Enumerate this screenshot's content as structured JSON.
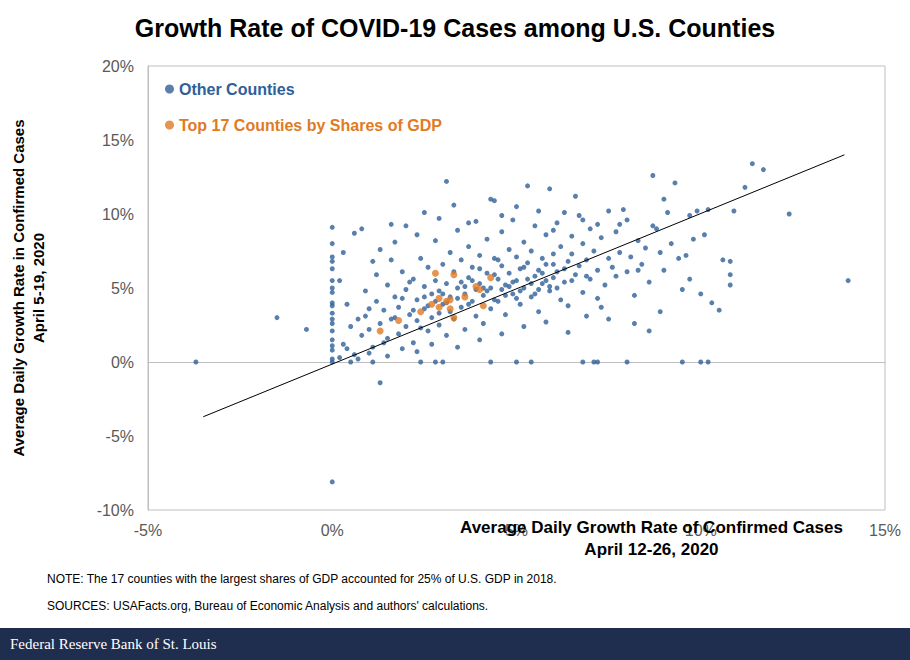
{
  "chart_data": {
    "type": "scatter",
    "title": "Growth Rate of COVID-19 Cases among U.S. Counties",
    "x_label": "Average Daily Growth Rate of Confirmed Cases\nApril 12-26, 2020",
    "y_label": "Average Daily Growth Rate in Confirmed Cases\nApril 5-19, 2020",
    "xlim": [
      -5,
      15
    ],
    "xticks": [
      {
        "value": -5,
        "label": "-5%"
      },
      {
        "value": 0,
        "label": "0%"
      },
      {
        "value": 5,
        "label": "5%"
      },
      {
        "value": 10,
        "label": "10%"
      },
      {
        "value": 15,
        "label": "15%"
      }
    ],
    "ylim": [
      -10,
      20
    ],
    "yticks": [
      {
        "value": -10,
        "label": "-10%"
      },
      {
        "value": -5,
        "label": "-5%"
      },
      {
        "value": 0,
        "label": "0%"
      },
      {
        "value": 5,
        "label": "5%"
      },
      {
        "value": 10,
        "label": "10%"
      },
      {
        "value": 15,
        "label": "15%"
      },
      {
        "value": 20,
        "label": "20%"
      }
    ],
    "grid": false,
    "legend": "upper left",
    "annotations": [
      "NOTE: The 17 counties with the largest shares of GDP accounted for 25% of U.S. GDP in 2018.",
      "SOURCES: USAFacts.org, Bureau of Economic Analysis and authors' calculations."
    ],
    "footer": "Federal Reserve Bank of St. Louis",
    "series": [
      {
        "name": "Other Counties",
        "type": "scatter",
        "marker": "circle",
        "color": "#2f6097",
        "x": [
          0,
          0,
          0,
          0,
          0,
          0,
          0,
          0,
          0,
          0,
          0,
          0,
          0,
          0,
          0,
          0,
          0,
          0,
          0,
          0,
          0.5,
          1.1,
          2.4,
          2.8,
          3.0,
          4.3,
          5.0,
          5.4,
          6.8,
          7.1,
          7.2,
          8.0,
          9.5,
          10.0,
          10.2,
          -3.7,
          -1.5,
          -0.7,
          1.3,
          14.0,
          12.4,
          11.4,
          11.7,
          3.1,
          8.7,
          10.3,
          10.5,
          9.3,
          11.2,
          10.9,
          10.2,
          10.6,
          10.8,
          10.8,
          10.8,
          9.9,
          9.7,
          8.8,
          9.0,
          10.1,
          9.6,
          8.3,
          8.6,
          7.9,
          7.2,
          7.5,
          6.8,
          6.5,
          7.8,
          9.1,
          0.3,
          0.5,
          0.6,
          0.8,
          0.9,
          1.0,
          1.1,
          1.2,
          1.3,
          1.4,
          1.5,
          1.5,
          1.6,
          1.7,
          1.8,
          1.8,
          1.9,
          2.0,
          2.0,
          2.1,
          2.2,
          2.2,
          2.3,
          2.3,
          2.4,
          2.5,
          2.5,
          2.6,
          2.6,
          2.7,
          2.7,
          2.8,
          2.8,
          2.9,
          2.9,
          3.0,
          3.0,
          3.1,
          3.1,
          3.2,
          3.2,
          3.3,
          3.3,
          3.4,
          3.4,
          3.5,
          3.5,
          3.6,
          3.6,
          3.7,
          3.7,
          3.8,
          3.8,
          3.9,
          3.9,
          4.0,
          4.0,
          4.1,
          4.1,
          4.2,
          4.2,
          4.3,
          4.3,
          4.4,
          4.4,
          4.5,
          4.5,
          4.6,
          4.6,
          4.7,
          4.7,
          4.8,
          4.8,
          4.9,
          4.9,
          5.0,
          5.0,
          5.1,
          5.1,
          5.2,
          5.2,
          5.3,
          5.3,
          5.4,
          5.4,
          5.5,
          5.5,
          5.6,
          5.6,
          5.7,
          5.7,
          5.8,
          5.8,
          5.9,
          5.9,
          6.0,
          6.0,
          6.1,
          6.1,
          6.2,
          6.2,
          6.3,
          6.3,
          6.4,
          6.4,
          6.5,
          6.6,
          6.6,
          6.7,
          6.8,
          6.8,
          6.9,
          7.0,
          7.0,
          7.1,
          7.2,
          7.2,
          7.3,
          7.4,
          7.5,
          7.5,
          7.6,
          7.7,
          7.7,
          7.8,
          8.0,
          8.0,
          8.1,
          8.2,
          8.3,
          8.4,
          8.5,
          8.6,
          8.7,
          8.9,
          9.0,
          9.2,
          9.4,
          9.5,
          9.8,
          0.4,
          0.7,
          0.9,
          1.2,
          1.4,
          1.6,
          1.9,
          2.1,
          2.4,
          2.6,
          2.8,
          3.0,
          3.2,
          3.4,
          3.5,
          3.7,
          3.9,
          4.0,
          4.2,
          4.4,
          4.5,
          4.7,
          4.9,
          5.1,
          5.3,
          5.5,
          5.7,
          5.9,
          6.1,
          6.3,
          1.1,
          1.3,
          1.7,
          2.0,
          2.3,
          0.6,
          0.2,
          0.3,
          0.8,
          1.6,
          2.5,
          2.9,
          3.3,
          3.7,
          4.3,
          4.6,
          5.0,
          5.6,
          6.0,
          6.7,
          0.2,
          0.4,
          0.7,
          1.0,
          1.5,
          1.9,
          2.3,
          2.7,
          3.4,
          4.0,
          4.6,
          5.2,
          5.8,
          6.4,
          6.9,
          7.3,
          8.2,
          8.9,
          9.7,
          10.0,
          1.0,
          1.7,
          2.2,
          2.5,
          2.9,
          3.1,
          3.6,
          3.8,
          4.1,
          4.4,
          4.6,
          4.8,
          5.0,
          5.2,
          5.4,
          5.6,
          5.8,
          6.0,
          6.5,
          6.9
        ],
        "values": [
          0.2,
          0.8,
          1.5,
          2.1,
          2.6,
          3.3,
          4.0,
          4.7,
          5.5,
          6.3,
          7.1,
          8.0,
          9.1,
          0,
          -8.1,
          1.1,
          3.8,
          5.0,
          6.8,
          2.9,
          0,
          0,
          0,
          0,
          0,
          0,
          0,
          0,
          0,
          0,
          0,
          0,
          0,
          0,
          0,
          0,
          3.0,
          2.2,
          -1.4,
          5.5,
          10.0,
          13.4,
          13.0,
          12.2,
          12.6,
          4.0,
          3.5,
          12.1,
          11.8,
          10.2,
          10.3,
          6.9,
          6.8,
          5.9,
          5.2,
          10.2,
          9.9,
          9.0,
          11.0,
          8.6,
          7.2,
          6.2,
          2.1,
          10.3,
          9.3,
          10.2,
          9.6,
          8.5,
          9.3,
          10.1,
          1.2,
          2.4,
          0.5,
          1.8,
          3.1,
          2.2,
          1.0,
          4.1,
          2.6,
          3.5,
          1.6,
          5.2,
          2.9,
          4.4,
          1.9,
          3.7,
          6.1,
          2.4,
          4.9,
          3.2,
          1.3,
          5.6,
          2.8,
          4.2,
          7.0,
          3.6,
          5.1,
          2.1,
          6.4,
          4.6,
          3.0,
          5.5,
          8.2,
          2.5,
          4.8,
          6.6,
          3.9,
          5.3,
          1.8,
          7.4,
          4.4,
          6.1,
          2.9,
          5.0,
          8.9,
          3.7,
          6.9,
          4.6,
          2.2,
          5.7,
          7.8,
          4.1,
          6.4,
          3.1,
          9.5,
          5.3,
          7.2,
          4.5,
          2.6,
          6.0,
          8.3,
          5.0,
          3.6,
          7.0,
          10.9,
          5.6,
          4.1,
          6.5,
          8.8,
          5.2,
          3.2,
          7.6,
          6.0,
          4.6,
          9.6,
          5.5,
          7.1,
          6.3,
          3.9,
          8.1,
          5.0,
          11.9,
          6.7,
          4.4,
          7.5,
          5.8,
          9.2,
          6.2,
          3.4,
          7.0,
          5.3,
          8.6,
          6.6,
          4.8,
          11.7,
          7.3,
          5.7,
          9.4,
          6.1,
          4.2,
          7.8,
          5.4,
          10.1,
          6.8,
          3.8,
          7.3,
          5.9,
          11.2,
          6.5,
          4.7,
          8.0,
          6.9,
          5.6,
          9.0,
          7.5,
          4.3,
          6.2,
          8.4,
          5.2,
          7.0,
          2.9,
          6.4,
          8.8,
          5.8,
          7.4,
          6.1,
          9.6,
          7.1,
          4.5,
          8.2,
          6.6,
          7.7,
          5.4,
          9.2,
          7.4,
          6.2,
          8.0,
          7.0,
          4.9,
          8.3,
          3.9,
          2.9,
          4.8,
          5.9,
          1.3,
          6.9,
          4.3,
          5.4,
          2.3,
          3.8,
          4.1,
          4.6,
          3.4,
          4.3,
          5.4,
          3.9,
          4.9,
          6.3,
          4.8,
          5.9,
          6.9,
          4.5,
          5.4,
          4.8,
          5.6,
          4.6,
          6.0,
          5.1,
          5.0,
          6.3,
          6.8,
          7.6,
          8.1,
          9.2,
          8.6,
          8.7,
          5.5,
          7.4,
          9.0,
          9.3,
          10.1,
          9.7,
          10.6,
          9.4,
          11.0,
          9.9,
          10.5,
          10.2,
          8.9,
          9.9,
          0.3,
          0.9,
          0.2,
          0.6,
          0.4,
          0.9,
          0.7,
          1.2,
          1.0,
          1.5,
          1.9,
          2.4,
          2.7,
          2.0,
          3.1,
          3.7,
          2.6,
          3.4,
          5.6,
          4.6,
          3.6,
          3.0,
          3.5,
          4.4,
          3.3,
          4.0,
          5.1,
          5.5,
          5.0,
          4.2,
          4.9,
          5.1,
          4.3,
          6.4,
          5.3,
          4.9,
          5.5,
          6.6,
          5.5,
          5.8
        ]
      },
      {
        "name": "Top 17 Counties by Shares of GDP",
        "type": "scatter",
        "marker": "circle",
        "color": "#e07b24",
        "x": [
          1.3,
          1.8,
          2.4,
          2.8,
          2.9,
          2.9,
          3.1,
          3.2,
          3.3,
          3.3,
          3.2,
          3.9,
          4.0,
          4.1,
          4.3,
          2.7,
          3.6
        ],
        "values": [
          2.1,
          2.8,
          3.4,
          6.0,
          4.3,
          3.7,
          4.1,
          3.6,
          5.9,
          3.0,
          4.2,
          5.1,
          4.9,
          3.8,
          5.7,
          3.9,
          4.4
        ]
      },
      {
        "type": "line",
        "line_style": "solid",
        "color": "#000000",
        "x": [
          -3.5,
          13.9
        ],
        "values": [
          -3.7,
          14.0
        ]
      }
    ]
  }
}
